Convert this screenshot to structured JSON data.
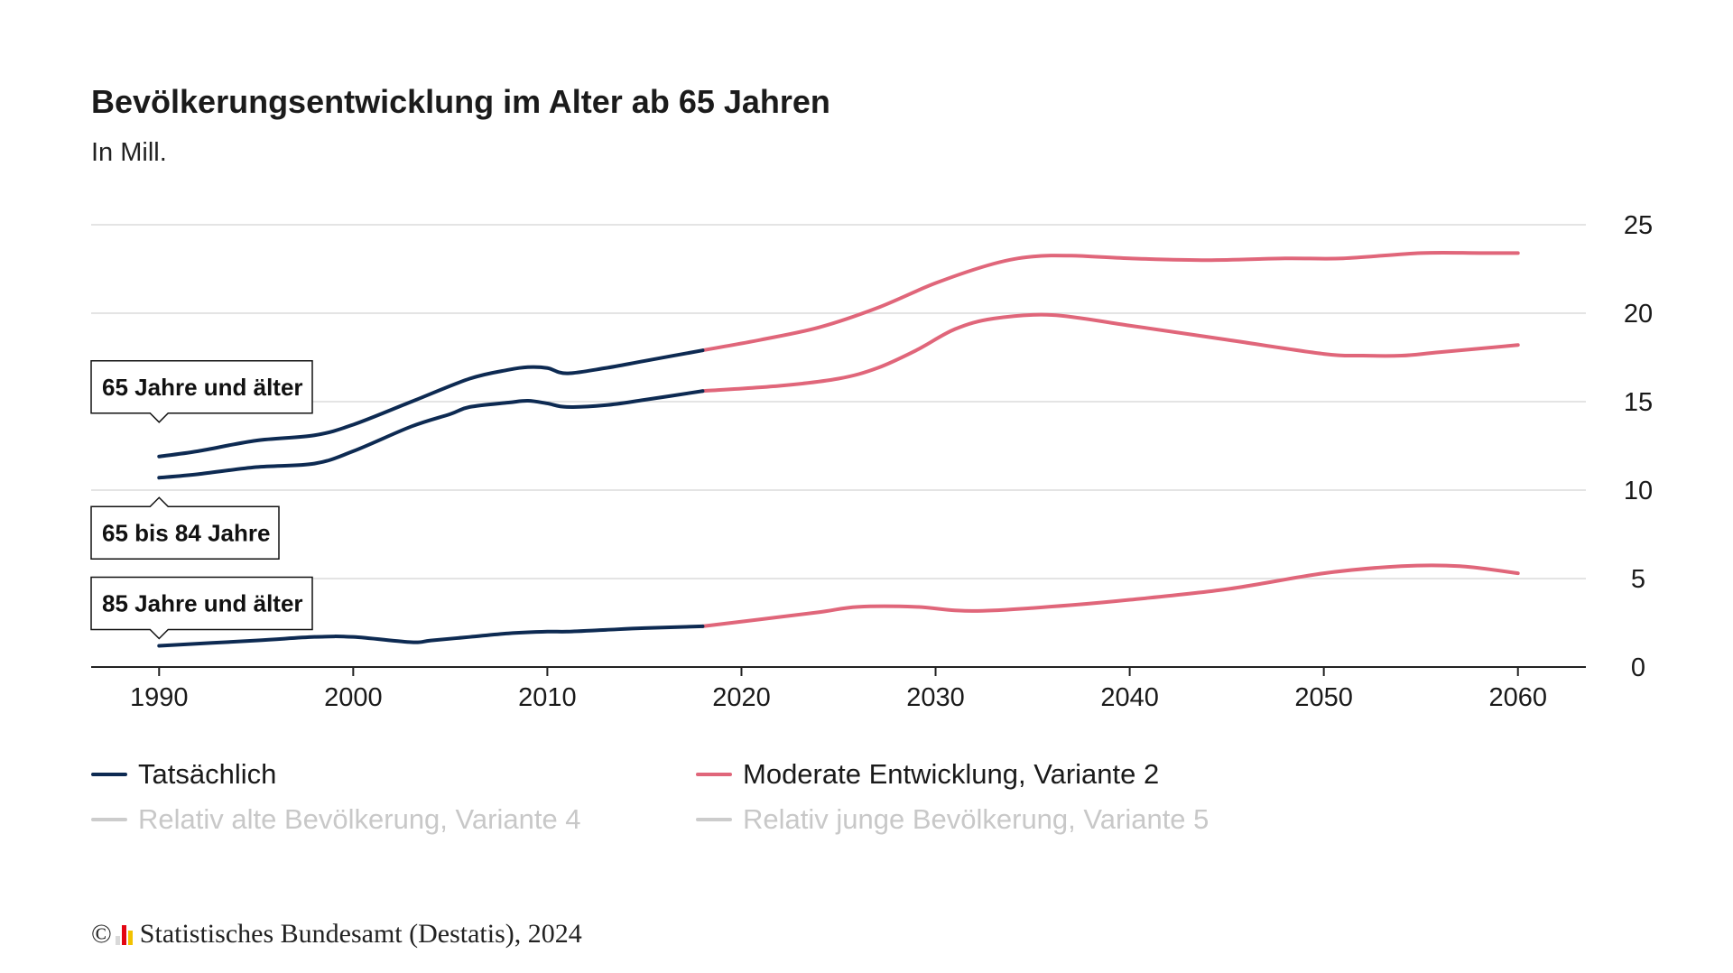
{
  "colors": {
    "actual": "#0d2a52",
    "variant2": "#e0667a",
    "inactive": "#cccccc",
    "grid": "#dcdcdc",
    "axis": "#222222"
  },
  "legend": [
    {
      "label": "Tatsächlich",
      "color": "#0d2a52",
      "active": true
    },
    {
      "label": "Moderate Entwicklung, Variante 2",
      "color": "#e0667a",
      "active": true
    },
    {
      "label": "Relativ alte Bevölkerung, Variante 4",
      "color": "#cccccc",
      "active": false
    },
    {
      "label": "Relativ junge Bevölkerung, Variante 5",
      "color": "#cccccc",
      "active": false
    }
  ],
  "footer": {
    "copyright": "©",
    "source": "Statistisches Bundesamt (Destatis), 2024",
    "logo_colors": [
      "#d9d9d9",
      "#e30613",
      "#f2c200"
    ]
  },
  "chart_data": {
    "type": "line",
    "title": "Bevölkerungsentwicklung im Alter ab 65 Jahren",
    "subtitle": "In Mill.",
    "xlabel": "",
    "ylabel": "",
    "xlim": [
      1986.5,
      2063.5
    ],
    "ylim": [
      0,
      25
    ],
    "x_ticks": [
      1990,
      2000,
      2010,
      2020,
      2030,
      2040,
      2050,
      2060
    ],
    "y_ticks": [
      0,
      5,
      10,
      15,
      20,
      25
    ],
    "grid": true,
    "y_axis_position": "right",
    "callouts": [
      {
        "label": "65 Jahre und älter",
        "series": "65 Jahre und älter",
        "x": 1990,
        "pointer": "down"
      },
      {
        "label": "65 bis 84 Jahre",
        "series": "65 bis 84 Jahre",
        "x": 1990,
        "pointer": "up"
      },
      {
        "label": "85 Jahre und älter",
        "series": "85 Jahre und älter",
        "x": 1990,
        "pointer": "down"
      }
    ],
    "series": [
      {
        "name": "65 Jahre und älter",
        "actual": {
          "x": [
            1990,
            1992,
            1995,
            1998,
            2000,
            2003,
            2006,
            2008,
            2009,
            2010,
            2011,
            2013,
            2015,
            2018
          ],
          "y": [
            11.9,
            12.2,
            12.8,
            13.1,
            13.7,
            15.0,
            16.3,
            16.8,
            16.95,
            16.9,
            16.6,
            16.9,
            17.3,
            17.9
          ]
        },
        "variant2": {
          "x": [
            2018,
            2021,
            2024,
            2027,
            2030,
            2033,
            2035,
            2037,
            2040,
            2044,
            2048,
            2051,
            2055,
            2058,
            2060
          ],
          "y": [
            17.9,
            18.5,
            19.2,
            20.3,
            21.7,
            22.8,
            23.2,
            23.25,
            23.1,
            23.0,
            23.1,
            23.1,
            23.4,
            23.4,
            23.4
          ]
        }
      },
      {
        "name": "65 bis 84 Jahre",
        "actual": {
          "x": [
            1990,
            1992,
            1995,
            1998,
            2000,
            2003,
            2005,
            2006,
            2008,
            2009,
            2010,
            2011,
            2013,
            2015,
            2018
          ],
          "y": [
            10.7,
            10.9,
            11.3,
            11.5,
            12.2,
            13.6,
            14.3,
            14.7,
            14.95,
            15.05,
            14.9,
            14.7,
            14.8,
            15.1,
            15.6
          ]
        },
        "variant2": {
          "x": [
            2018,
            2022,
            2025,
            2027,
            2029,
            2031,
            2033,
            2036,
            2040,
            2045,
            2050,
            2052,
            2054,
            2056,
            2060
          ],
          "y": [
            15.6,
            15.9,
            16.3,
            16.9,
            17.9,
            19.1,
            19.7,
            19.9,
            19.3,
            18.5,
            17.7,
            17.6,
            17.6,
            17.8,
            18.2
          ]
        }
      },
      {
        "name": "85 Jahre und älter",
        "actual": {
          "x": [
            1990,
            1995,
            1998,
            2000,
            2003,
            2004,
            2006,
            2008,
            2010,
            2011,
            2013,
            2015,
            2018
          ],
          "y": [
            1.2,
            1.5,
            1.7,
            1.7,
            1.4,
            1.5,
            1.7,
            1.9,
            2.0,
            2.0,
            2.1,
            2.2,
            2.3
          ]
        },
        "variant2": {
          "x": [
            2018,
            2021,
            2024,
            2026,
            2029,
            2031,
            2033,
            2037,
            2040,
            2045,
            2050,
            2054,
            2057,
            2060
          ],
          "y": [
            2.3,
            2.7,
            3.1,
            3.4,
            3.4,
            3.2,
            3.2,
            3.5,
            3.8,
            4.4,
            5.3,
            5.7,
            5.7,
            5.3
          ]
        }
      }
    ]
  }
}
